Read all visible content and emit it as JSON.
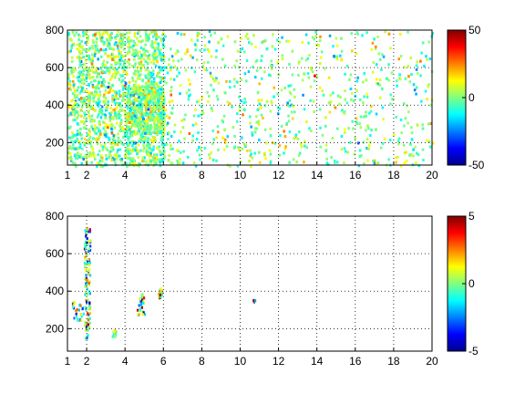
{
  "chart_data": [
    {
      "type": "heatmap",
      "panel": "top",
      "x_ticks": [
        "1",
        "2",
        "4",
        "6",
        "8",
        "10",
        "12",
        "14",
        "16",
        "18",
        "20"
      ],
      "y_ticks": [
        "200",
        "400",
        "600",
        "800"
      ],
      "xlim": [
        1,
        20
      ],
      "ylim": [
        80,
        800
      ],
      "grid": true,
      "colorbar": {
        "ticks": [
          "50",
          "0",
          "-50"
        ],
        "clim": [
          -50,
          50
        ],
        "colormap": "jet"
      },
      "description_dense_regions": [
        [
          1,
          6,
          80,
          800
        ],
        [
          4,
          6,
          250,
          500
        ]
      ],
      "dominant_value": 0
    },
    {
      "type": "heatmap",
      "panel": "bottom",
      "x_ticks": [
        "1",
        "2",
        "4",
        "6",
        "8",
        "10",
        "12",
        "14",
        "16",
        "18",
        "20"
      ],
      "y_ticks": [
        "200",
        "400",
        "600",
        "800"
      ],
      "xlim": [
        1,
        20
      ],
      "ylim": [
        80,
        800
      ],
      "grid": true,
      "colorbar": {
        "ticks": [
          "5",
          "0",
          "-5"
        ],
        "clim": [
          -5,
          5
        ],
        "colormap": "jet"
      },
      "clusters": [
        {
          "x": 2.0,
          "y": 450,
          "spread_x": 0.15,
          "spread_y": 300
        },
        {
          "x": 1.5,
          "y": 300,
          "spread_x": 0.3,
          "spread_y": 50
        },
        {
          "x": 4.8,
          "y": 340,
          "spread_x": 0.2,
          "spread_y": 60
        },
        {
          "x": 5.8,
          "y": 400,
          "spread_x": 0.1,
          "spread_y": 30
        },
        {
          "x": 3.4,
          "y": 180,
          "spread_x": 0.1,
          "spread_y": 20
        },
        {
          "x": 10.7,
          "y": 355,
          "spread_x": 0.05,
          "spread_y": 5
        }
      ]
    }
  ]
}
